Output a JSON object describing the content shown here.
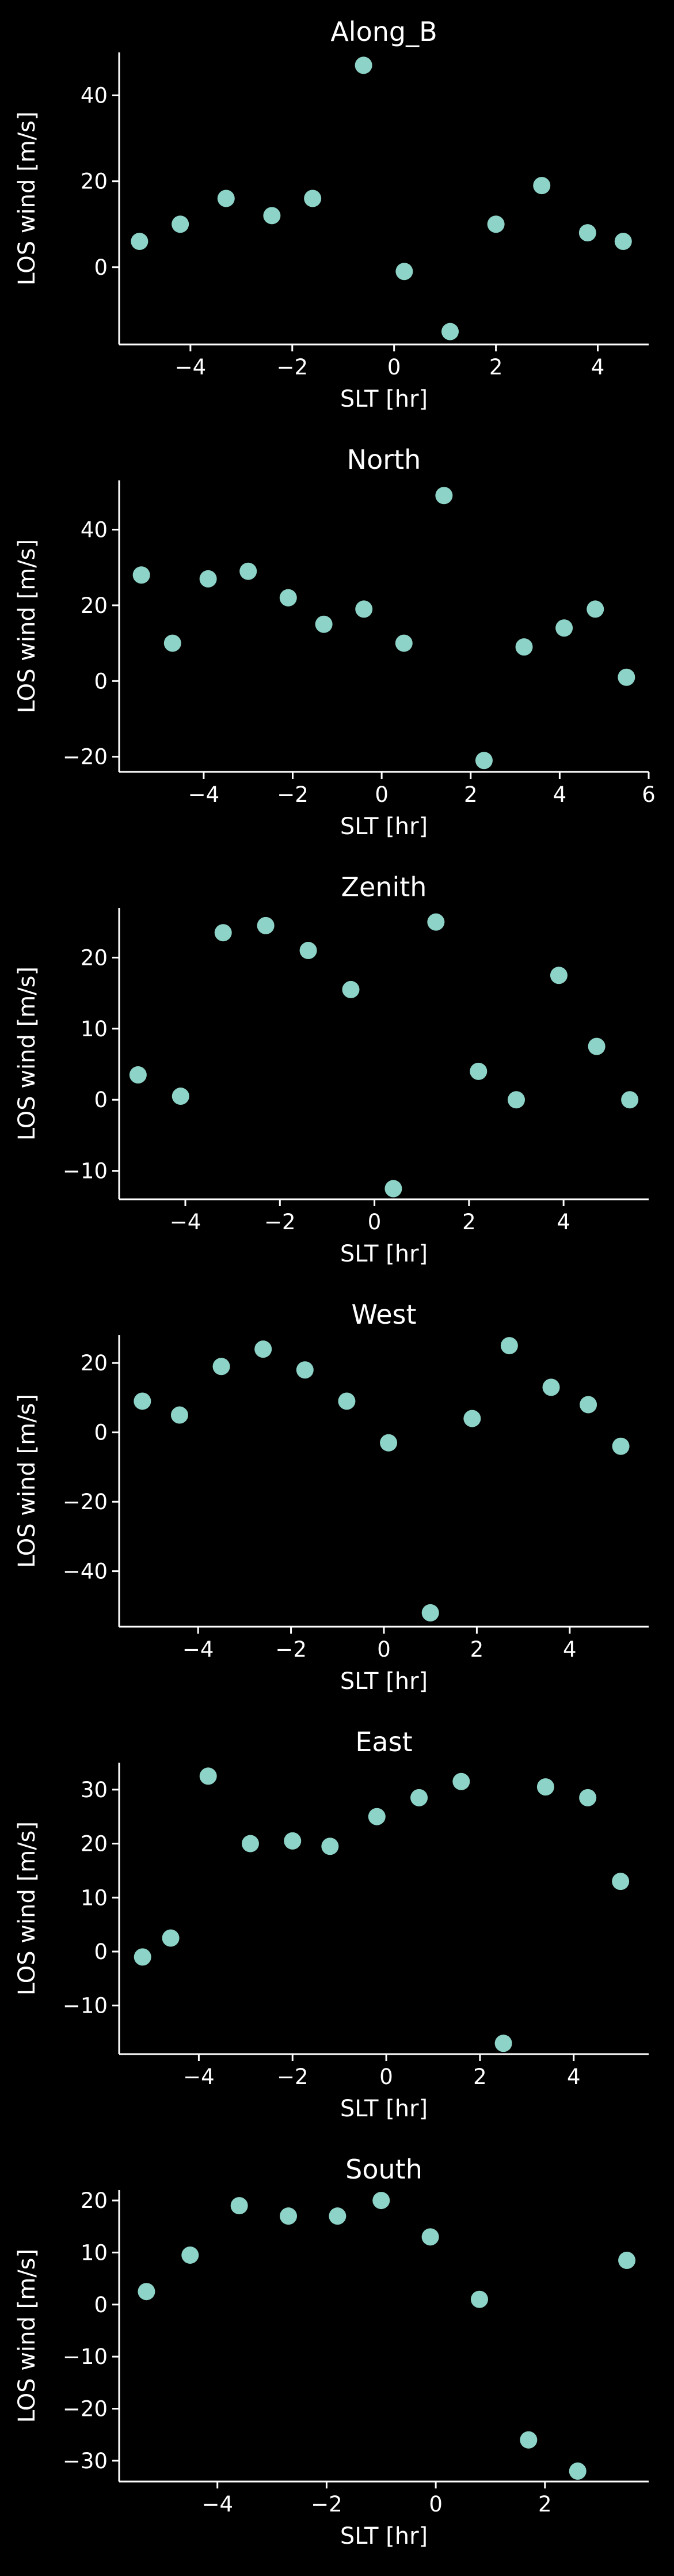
{
  "figure": {
    "background": "#000000",
    "marker_color": "#8dd3c7",
    "text_color": "#ffffff"
  },
  "chart_data": [
    {
      "type": "scatter",
      "title": "Along_B",
      "xlabel": "SLT [hr]",
      "ylabel": "LOS wind [m/s]",
      "xlim": [
        -5.4,
        5.0
      ],
      "ylim": [
        -18,
        50
      ],
      "xticks": [
        -4,
        -2,
        0,
        2,
        4
      ],
      "yticks": [
        0,
        20,
        40
      ],
      "grid": false,
      "x": [
        -5.0,
        -4.2,
        -3.3,
        -2.4,
        -1.6,
        -0.6,
        0.2,
        1.1,
        2.0,
        2.9,
        3.8,
        4.5
      ],
      "y": [
        6,
        10,
        16,
        12,
        16,
        47,
        -1,
        -15,
        10,
        19,
        8,
        6
      ]
    },
    {
      "type": "scatter",
      "title": "North",
      "xlabel": "SLT [hr]",
      "ylabel": "LOS wind [m/s]",
      "xlim": [
        -5.9,
        6.0
      ],
      "ylim": [
        -24,
        53
      ],
      "xticks": [
        -4,
        -2,
        0,
        2,
        4,
        6
      ],
      "yticks": [
        -20,
        0,
        20,
        40
      ],
      "grid": false,
      "x": [
        -5.4,
        -4.7,
        -3.9,
        -3.0,
        -2.1,
        -1.3,
        -0.4,
        0.5,
        1.4,
        2.3,
        3.2,
        4.1,
        4.8,
        5.5
      ],
      "y": [
        28,
        10,
        27,
        29,
        22,
        15,
        19,
        10,
        49,
        -21,
        9,
        14,
        19,
        1
      ]
    },
    {
      "type": "scatter",
      "title": "Zenith",
      "xlabel": "SLT [hr]",
      "ylabel": "LOS wind [m/s]",
      "xlim": [
        -5.4,
        5.8
      ],
      "ylim": [
        -14,
        27
      ],
      "xticks": [
        -4,
        -2,
        0,
        2,
        4
      ],
      "yticks": [
        -10,
        0,
        10,
        20
      ],
      "grid": false,
      "x": [
        -5.0,
        -4.1,
        -3.2,
        -2.3,
        -1.4,
        -0.5,
        0.4,
        1.3,
        2.2,
        3.0,
        3.9,
        4.7,
        5.4
      ],
      "y": [
        3.5,
        0.5,
        23.5,
        24.5,
        21,
        15.5,
        -12.5,
        25,
        4,
        0,
        17.5,
        7.5,
        0
      ]
    },
    {
      "type": "scatter",
      "title": "West",
      "xlabel": "SLT [hr]",
      "ylabel": "LOS wind [m/s]",
      "xlim": [
        -5.7,
        5.7
      ],
      "ylim": [
        -56,
        28
      ],
      "xticks": [
        -4,
        -2,
        0,
        2,
        4
      ],
      "yticks": [
        -40,
        -20,
        0,
        20
      ],
      "grid": false,
      "x": [
        -5.2,
        -4.4,
        -3.5,
        -2.6,
        -1.7,
        -0.8,
        0.1,
        1.0,
        1.9,
        2.7,
        3.6,
        4.4,
        5.1
      ],
      "y": [
        9,
        5,
        19,
        24,
        18,
        9,
        -3,
        -52,
        4,
        25,
        13,
        8,
        -4
      ]
    },
    {
      "type": "scatter",
      "title": "East",
      "xlabel": "SLT [hr]",
      "ylabel": "LOS wind [m/s]",
      "xlim": [
        -5.7,
        5.6
      ],
      "ylim": [
        -19,
        35
      ],
      "xticks": [
        -4,
        -2,
        0,
        2,
        4
      ],
      "yticks": [
        -10,
        0,
        10,
        20,
        30
      ],
      "grid": false,
      "x": [
        -5.2,
        -4.6,
        -3.8,
        -2.9,
        -2.0,
        -1.2,
        -0.2,
        0.7,
        1.6,
        2.5,
        3.4,
        4.3,
        5.0
      ],
      "y": [
        -1,
        2.5,
        32.5,
        20,
        20.5,
        19.5,
        25,
        28.5,
        31.5,
        -17,
        30.5,
        28.5,
        13
      ]
    },
    {
      "type": "scatter",
      "title": "South",
      "xlabel": "SLT [hr]",
      "ylabel": "LOS wind [m/s]",
      "xlim": [
        -5.8,
        3.9
      ],
      "ylim": [
        -34,
        22
      ],
      "xticks": [
        -4,
        -2,
        0,
        2
      ],
      "yticks": [
        -30,
        -20,
        -10,
        0,
        10,
        20
      ],
      "grid": false,
      "x": [
        -5.3,
        -4.5,
        -3.6,
        -2.7,
        -1.8,
        -1.0,
        -0.1,
        0.8,
        1.7,
        2.6,
        3.5
      ],
      "y": [
        2.5,
        9.5,
        19,
        17,
        17,
        20,
        13,
        1,
        -26,
        -32,
        8.5
      ]
    }
  ]
}
